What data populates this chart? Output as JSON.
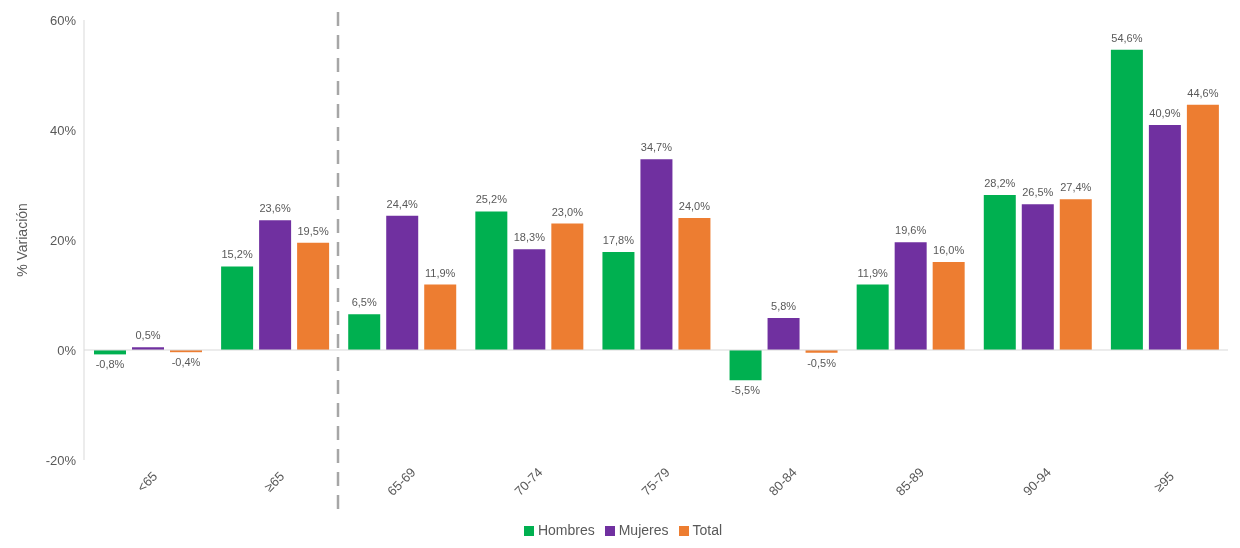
{
  "chart_data": {
    "type": "bar",
    "ylabel": "% Variación",
    "categories": [
      "<65",
      "≥65",
      "65-69",
      "70-74",
      "75-79",
      "80-84",
      "85-89",
      "90-94",
      "≥95"
    ],
    "series": [
      {
        "name": "Hombres",
        "color": "#00b050",
        "values": [
          -0.8,
          15.2,
          6.5,
          25.2,
          17.8,
          -5.5,
          11.9,
          28.2,
          54.6
        ],
        "value_labels": [
          "-0,8%",
          "15,2%",
          "6,5%",
          "25,2%",
          "17,8%",
          "-5,5%",
          "11,9%",
          "28,2%",
          "54,6%"
        ]
      },
      {
        "name": "Mujeres",
        "color": "#7030a0",
        "values": [
          0.5,
          23.6,
          24.4,
          18.3,
          34.7,
          5.8,
          19.6,
          26.5,
          40.9
        ],
        "value_labels": [
          "0,5%",
          "23,6%",
          "24,4%",
          "18,3%",
          "34,7%",
          "5,8%",
          "19,6%",
          "26,5%",
          "40,9%"
        ]
      },
      {
        "name": "Total",
        "color": "#ed7d31",
        "values": [
          -0.4,
          19.5,
          11.9,
          23.0,
          24.0,
          -0.5,
          16.0,
          27.4,
          44.6
        ],
        "value_labels": [
          "-0,4%",
          "19,5%",
          "11,9%",
          "23,0%",
          "24,0%",
          "-0,5%",
          "16,0%",
          "27,4%",
          "44,6%"
        ]
      }
    ],
    "ylim": [
      -20,
      60
    ],
    "yticks": [
      {
        "value": -20,
        "label": "-20%"
      },
      {
        "value": 0,
        "label": "0%"
      },
      {
        "value": 20,
        "label": "20%"
      },
      {
        "value": 40,
        "label": "40%"
      },
      {
        "value": 60,
        "label": "60%"
      }
    ],
    "ref_lines": [
      {
        "axis": "x",
        "value": "≥65",
        "color": "#a6a6a6",
        "line_style": "dashed"
      }
    ],
    "grid": false,
    "legend": "bottom"
  }
}
